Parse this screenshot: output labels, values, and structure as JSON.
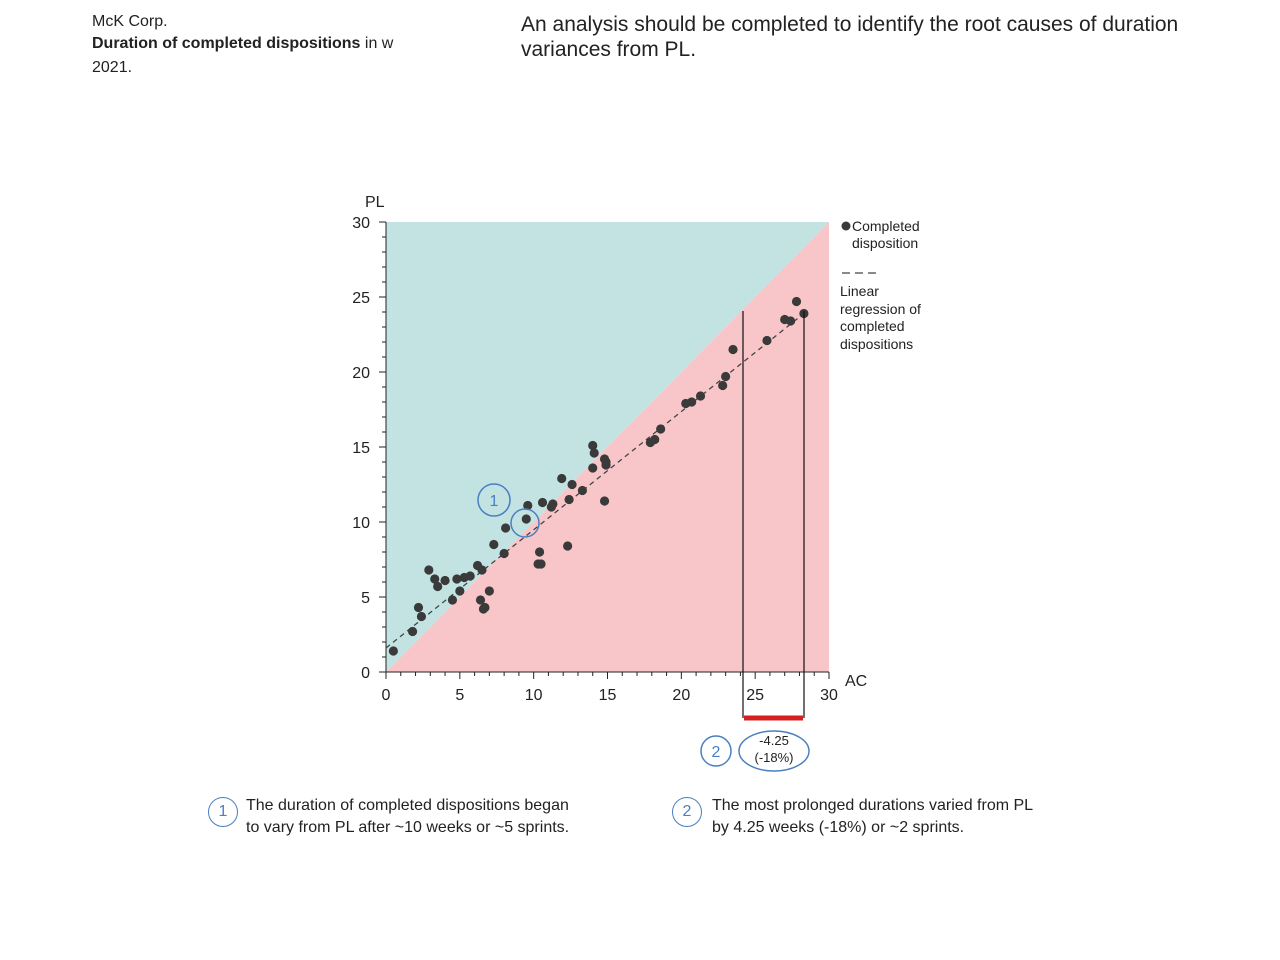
{
  "header": {
    "company": "McK Corp.",
    "title_bold": "Duration of completed dispositions",
    "title_unit": " in w",
    "year": "2021.",
    "message": "An analysis should be completed to identify the root causes of duration variances from PL."
  },
  "chart_data": {
    "type": "scatter",
    "xlabel": "AC",
    "ylabel": "PL",
    "xlim": [
      0,
      30
    ],
    "ylim": [
      0,
      30
    ],
    "xticks": [
      "0",
      "5",
      "10",
      "15",
      "20",
      "25",
      "30"
    ],
    "yticks": [
      "0",
      "5",
      "10",
      "15",
      "20",
      "25",
      "30"
    ],
    "regions": {
      "above_diagonal_color": "#c3e3e3",
      "below_diagonal_color": "#f8c6c8"
    },
    "legend": {
      "placement": "right",
      "points_label": "Completed disposition",
      "line_label": "Linear regression of completed dispositions"
    },
    "series": [
      {
        "name": "Completed disposition",
        "color": "#3a3a3a",
        "x": [
          0.5,
          1.8,
          2.2,
          2.4,
          2.9,
          3.3,
          3.5,
          4.0,
          4.5,
          4.8,
          5.0,
          5.3,
          5.7,
          6.2,
          6.4,
          6.5,
          6.6,
          6.7,
          7.0,
          7.3,
          8.0,
          8.1,
          9.5,
          9.6,
          10.3,
          10.4,
          10.5,
          10.6,
          11.2,
          11.3,
          11.9,
          12.3,
          12.4,
          12.6,
          13.3,
          14.0,
          14.0,
          14.1,
          14.8,
          14.8,
          14.9,
          14.9,
          17.9,
          18.2,
          18.6,
          20.3,
          20.7,
          21.3,
          22.8,
          23.0,
          23.5,
          25.8,
          27.0,
          27.4,
          27.8,
          28.3
        ],
        "y": [
          1.4,
          2.7,
          4.3,
          3.7,
          6.8,
          6.2,
          5.7,
          6.1,
          4.8,
          6.2,
          5.4,
          6.3,
          6.4,
          7.1,
          4.8,
          6.8,
          4.2,
          4.3,
          5.4,
          8.5,
          7.9,
          9.6,
          10.2,
          11.1,
          7.2,
          8.0,
          7.2,
          11.3,
          11.0,
          11.2,
          12.9,
          8.4,
          11.5,
          12.5,
          12.1,
          13.6,
          15.1,
          14.6,
          14.2,
          11.4,
          13.8,
          14.0,
          15.3,
          15.5,
          16.2,
          17.9,
          18.0,
          18.4,
          19.1,
          19.7,
          21.5,
          22.1,
          23.5,
          23.4,
          24.7,
          23.9
        ]
      }
    ],
    "regression": {
      "style": "dashed",
      "x": [
        0,
        28.3
      ],
      "y": [
        1.6,
        23.9
      ]
    }
  },
  "annotations": {
    "marker1": {
      "number": "1"
    },
    "marker2": {
      "number": "2",
      "value": "-4.25",
      "percent": "(-18%)",
      "bar_color": "#d42020"
    }
  },
  "notes": [
    {
      "number": "1",
      "text": "The duration of completed dispositions began\nto vary from PL after ~10 weeks or ~5 sprints."
    },
    {
      "number": "2",
      "text": "The most prolonged durations varied from PL\nby 4.25 weeks (-18%) or ~2 sprints."
    }
  ]
}
